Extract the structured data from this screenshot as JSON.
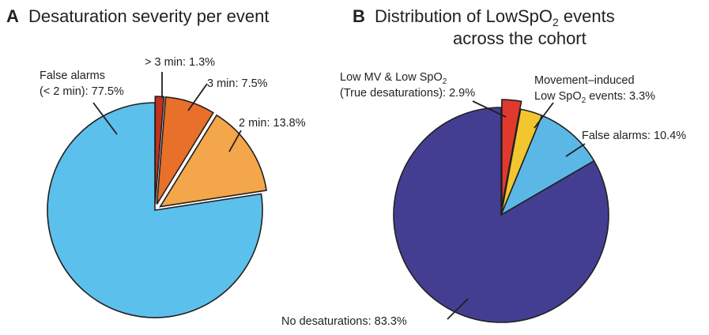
{
  "chart_data": [
    {
      "type": "pie",
      "panel": "A",
      "title": "Desaturation severity per event",
      "slices": [
        {
          "label": "False alarms",
          "sublabel": "(< 2 min): 77.5%",
          "text": "False alarms (< 2 min): 77.5%",
          "value": 77.5,
          "color": "#5bc0eb",
          "exploded": false
        },
        {
          "label": "2 min: 13.8%",
          "text": "2 min: 13.8%",
          "value": 13.8,
          "color": "#f3a64a",
          "exploded": true
        },
        {
          "label": "3 min: 7.5%",
          "text": "3 min: 7.5%",
          "value": 7.5,
          "color": "#e8702a",
          "exploded": true
        },
        {
          "label": "> 3 min: 1.3%",
          "text": "> 3 min: 1.3%",
          "value": 1.3,
          "color": "#c1321f",
          "exploded": true
        }
      ]
    },
    {
      "type": "pie",
      "panel": "B",
      "title_line1": "Distribution of LowSpO",
      "title_sub": "2",
      "title_line1_end": " events",
      "title_line2": "across the cohort",
      "slices": [
        {
          "label": "Low MV & Low SpO",
          "label_sub": "2",
          "sublabel": "(True desaturations): 2.9%",
          "value": 2.9,
          "color": "#e03a2f",
          "exploded": true
        },
        {
          "label": "Movement–induced",
          "sublabel_pre": "Low SpO",
          "sublabel_sub": "2",
          "sublabel_post": " events: 3.3%",
          "value": 3.3,
          "color": "#f2c62f",
          "exploded": false
        },
        {
          "label": "False alarms: 10.4%",
          "value": 10.4,
          "color": "#5bb8e6",
          "exploded": false
        },
        {
          "label": "No desaturations: 83.3%",
          "value": 83.3,
          "color": "#443e93",
          "exploded": false
        }
      ]
    }
  ]
}
